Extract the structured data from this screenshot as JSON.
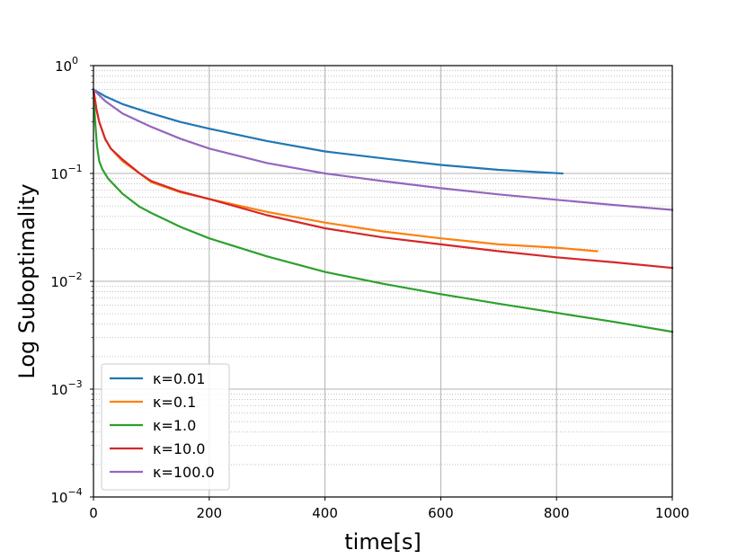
{
  "chart_data": {
    "type": "line",
    "xlabel": "time[s]",
    "ylabel": "Log Suboptimality",
    "xlim": [
      0,
      1000
    ],
    "ylim": [
      0.0001,
      1
    ],
    "yscale": "log",
    "grid": true,
    "legend_position": "lower-left",
    "x_ticks": [
      "0",
      "200",
      "400",
      "600",
      "800",
      "1000"
    ],
    "y_ticks": [
      {
        "base": "10",
        "exp": "0"
      },
      {
        "base": "10",
        "exp": "−1"
      },
      {
        "base": "10",
        "exp": "−2"
      },
      {
        "base": "10",
        "exp": "−3"
      },
      {
        "base": "10",
        "exp": "−4"
      }
    ],
    "series": [
      {
        "name": "κ=0.01",
        "color": "#1f77b4",
        "points": [
          [
            0,
            0.6
          ],
          [
            20,
            0.52
          ],
          [
            50,
            0.44
          ],
          [
            100,
            0.36
          ],
          [
            150,
            0.3
          ],
          [
            200,
            0.26
          ],
          [
            300,
            0.2
          ],
          [
            400,
            0.16
          ],
          [
            500,
            0.138
          ],
          [
            600,
            0.12
          ],
          [
            700,
            0.108
          ],
          [
            810,
            0.1
          ]
        ]
      },
      {
        "name": "κ=0.1",
        "color": "#ff7f0e",
        "points": [
          [
            0,
            0.6
          ],
          [
            5,
            0.4
          ],
          [
            10,
            0.3
          ],
          [
            20,
            0.21
          ],
          [
            30,
            0.17
          ],
          [
            50,
            0.13
          ],
          [
            80,
            0.1
          ],
          [
            100,
            0.083
          ],
          [
            150,
            0.067
          ],
          [
            200,
            0.058
          ],
          [
            300,
            0.044
          ],
          [
            400,
            0.035
          ],
          [
            500,
            0.029
          ],
          [
            600,
            0.025
          ],
          [
            700,
            0.022
          ],
          [
            800,
            0.0205
          ],
          [
            870,
            0.019
          ]
        ]
      },
      {
        "name": "κ=1.0",
        "color": "#2ca02c",
        "points": [
          [
            0,
            0.6
          ],
          [
            3,
            0.3
          ],
          [
            6,
            0.18
          ],
          [
            10,
            0.13
          ],
          [
            15,
            0.11
          ],
          [
            25,
            0.09
          ],
          [
            50,
            0.065
          ],
          [
            80,
            0.049
          ],
          [
            100,
            0.043
          ],
          [
            150,
            0.032
          ],
          [
            200,
            0.025
          ],
          [
            300,
            0.017
          ],
          [
            400,
            0.0122
          ],
          [
            500,
            0.0095
          ],
          [
            600,
            0.0076
          ],
          [
            700,
            0.0062
          ],
          [
            800,
            0.0051
          ],
          [
            900,
            0.0042
          ],
          [
            1000,
            0.0034
          ]
        ]
      },
      {
        "name": "κ=10.0",
        "color": "#d62728",
        "points": [
          [
            0,
            0.6
          ],
          [
            5,
            0.4
          ],
          [
            10,
            0.3
          ],
          [
            20,
            0.21
          ],
          [
            30,
            0.17
          ],
          [
            50,
            0.135
          ],
          [
            80,
            0.1
          ],
          [
            100,
            0.085
          ],
          [
            150,
            0.068
          ],
          [
            200,
            0.058
          ],
          [
            300,
            0.041
          ],
          [
            400,
            0.031
          ],
          [
            500,
            0.0255
          ],
          [
            600,
            0.022
          ],
          [
            700,
            0.019
          ],
          [
            800,
            0.0167
          ],
          [
            900,
            0.015
          ],
          [
            1000,
            0.0133
          ]
        ]
      },
      {
        "name": "κ=100.0",
        "color": "#9467bd",
        "points": [
          [
            0,
            0.6
          ],
          [
            20,
            0.47
          ],
          [
            50,
            0.36
          ],
          [
            100,
            0.27
          ],
          [
            150,
            0.21
          ],
          [
            200,
            0.17
          ],
          [
            300,
            0.125
          ],
          [
            400,
            0.1
          ],
          [
            500,
            0.085
          ],
          [
            600,
            0.073
          ],
          [
            700,
            0.064
          ],
          [
            800,
            0.057
          ],
          [
            900,
            0.051
          ],
          [
            1000,
            0.046
          ]
        ]
      }
    ]
  }
}
